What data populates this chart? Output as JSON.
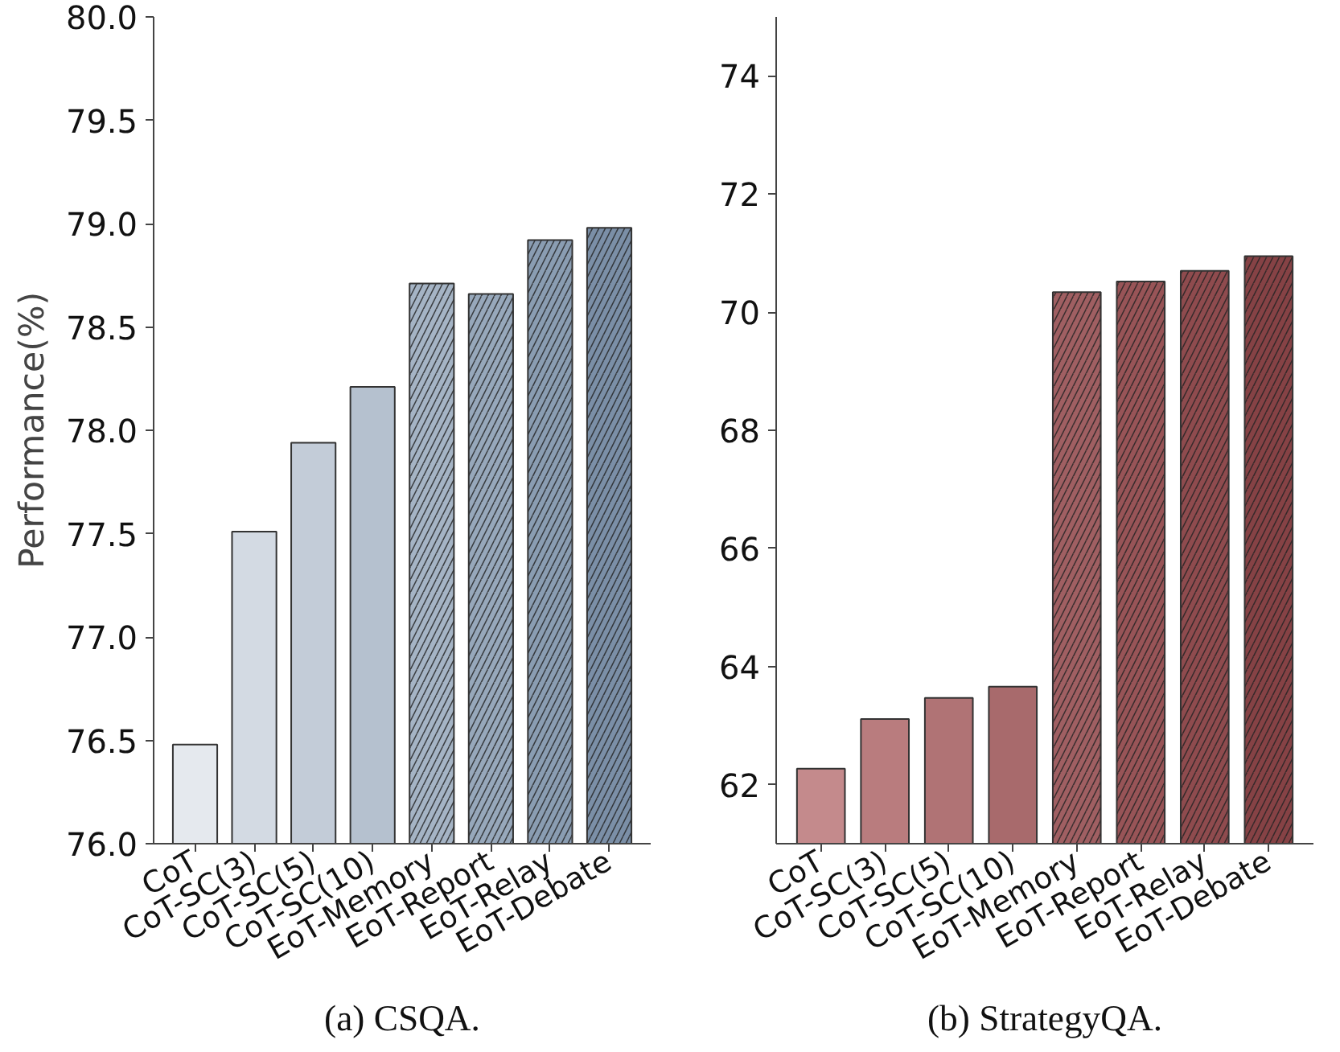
{
  "chart_data": [
    {
      "type": "bar",
      "title": "(a) CSQA.",
      "ylabel": "Performance(%)",
      "categories": [
        "CoT",
        "CoT-SC(3)",
        "CoT-SC(5)",
        "CoT-SC(10)",
        "EoT-Memory",
        "EoT-Report",
        "EoT-Relay",
        "EoT-Debate"
      ],
      "values": [
        76.48,
        77.51,
        77.94,
        78.21,
        78.71,
        78.66,
        78.92,
        78.98
      ],
      "colors": [
        "#e5e9ee",
        "#d3dae3",
        "#c3ccd8",
        "#b5c1cf",
        "#a5b4c5",
        "#97a8bb",
        "#8a9db2",
        "#7b8fa7"
      ],
      "ylim": [
        76,
        80
      ],
      "yticks": [
        {
          "value": 76,
          "label": "76.0"
        },
        76.5,
        {
          "value": 77,
          "label": "77.0"
        },
        77.5,
        {
          "value": 78,
          "label": "78.0"
        },
        78.5,
        {
          "value": 79,
          "label": "79.0"
        },
        79.5,
        {
          "value": 80,
          "label": "80.0"
        }
      ],
      "grid": false
    },
    {
      "type": "bar",
      "title": "(b) StrategyQA.",
      "categories": [
        "CoT",
        "CoT-SC(3)",
        "CoT-SC(5)",
        "CoT-SC(10)",
        "EoT-Memory",
        "EoT-Report",
        "EoT-Relay",
        "EoT-Debate"
      ],
      "values": [
        62.27,
        63.11,
        63.47,
        63.66,
        70.34,
        70.52,
        70.7,
        70.95
      ],
      "colors": [
        "#c48a8c",
        "#b97c7e",
        "#b07375",
        "#a86a6c",
        "#a05f62",
        "#985457",
        "#8f4b4e",
        "#864245"
      ],
      "ylim": [
        61,
        75
      ],
      "yticks": [
        62,
        64,
        66,
        68,
        70,
        72,
        74
      ],
      "grid": false
    }
  ]
}
